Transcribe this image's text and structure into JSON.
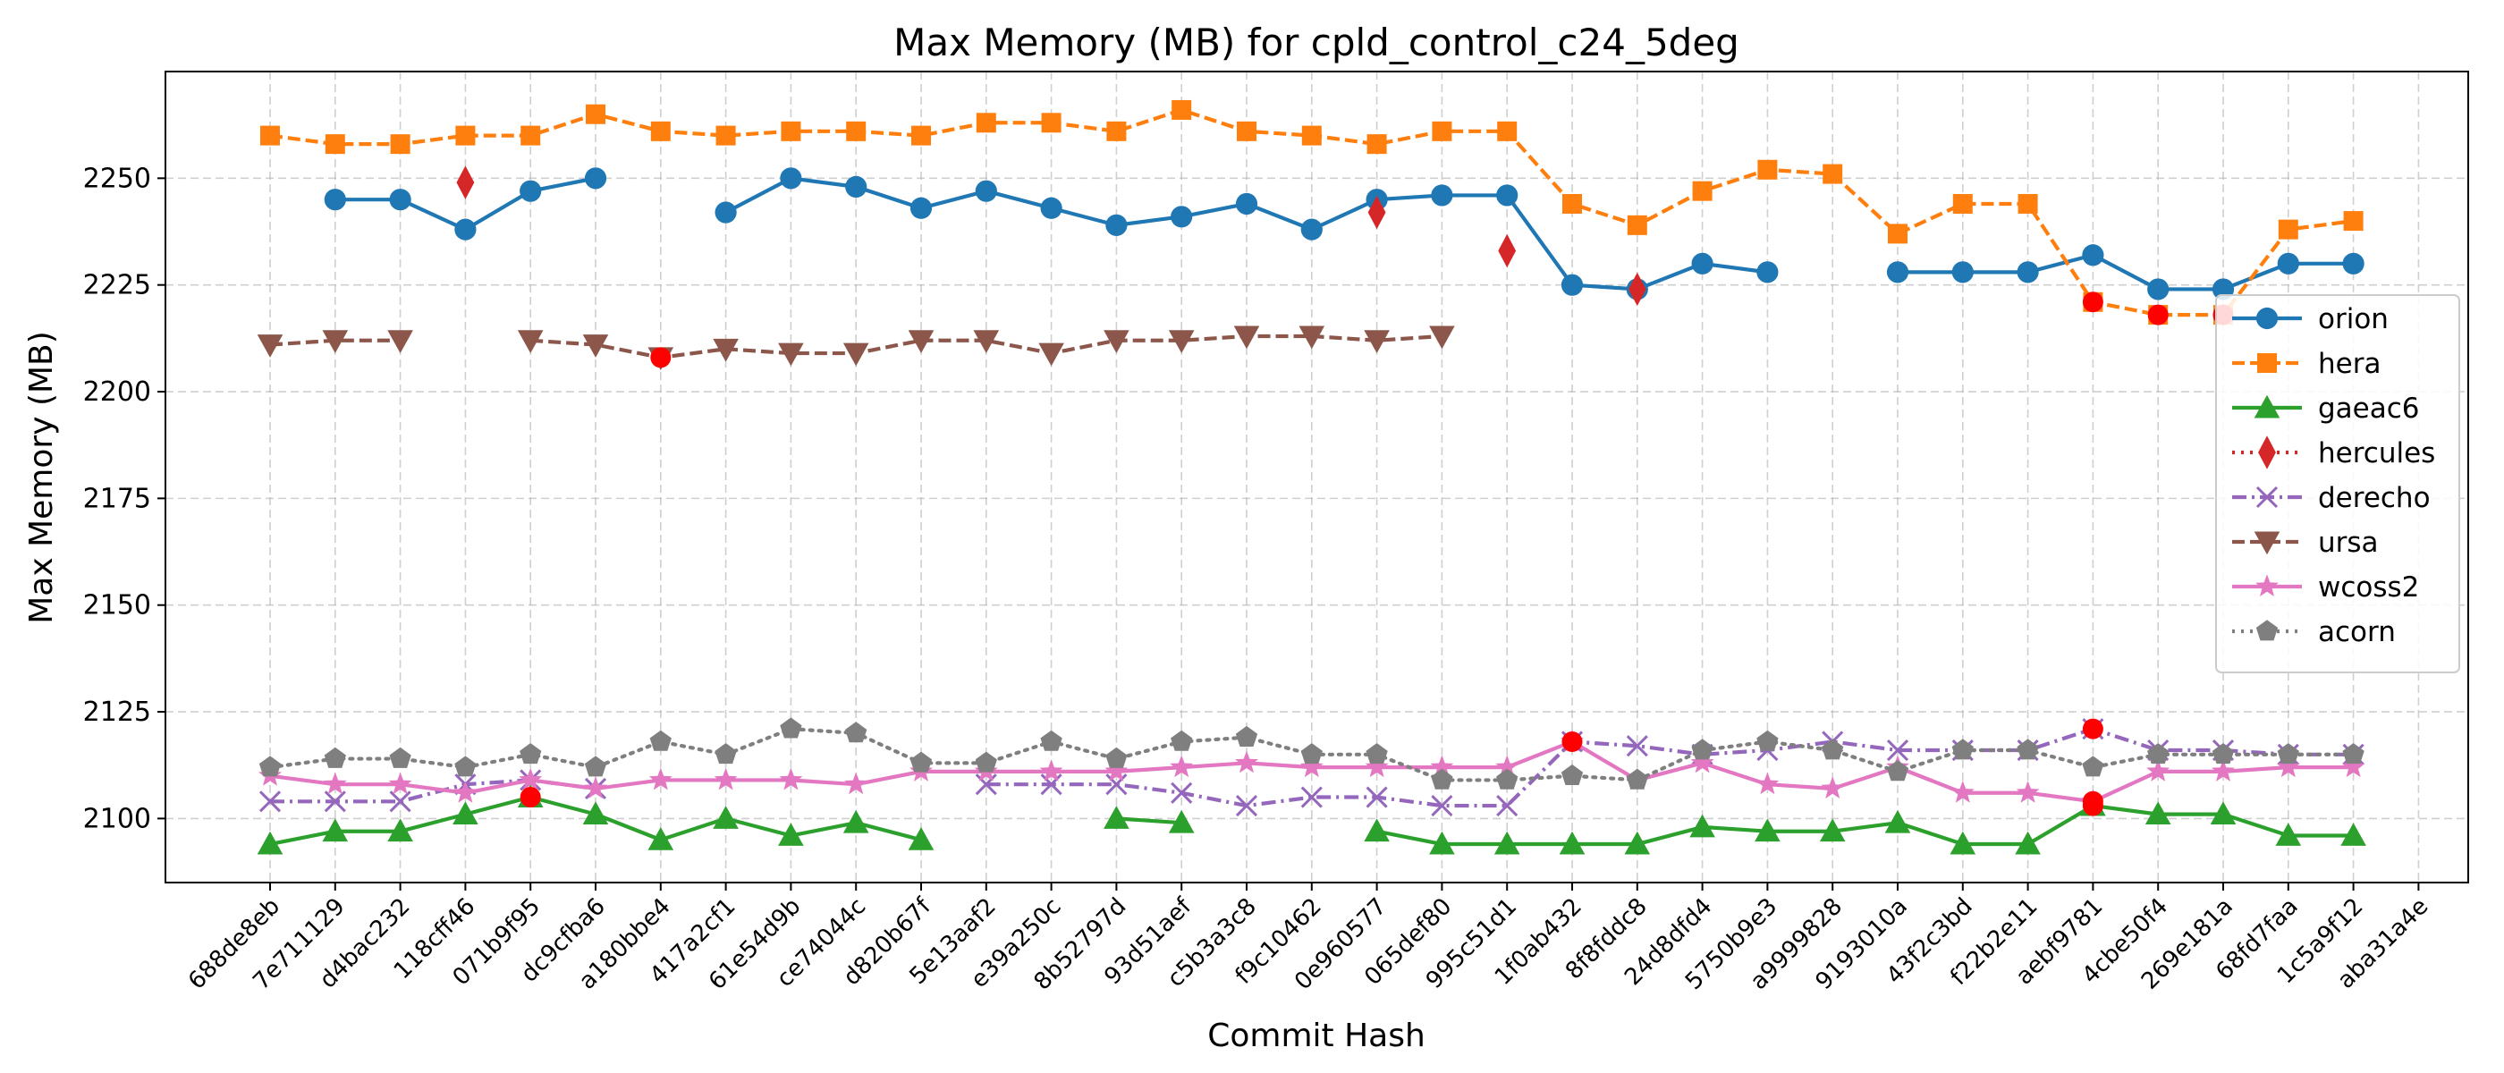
{
  "chart_data": {
    "type": "line",
    "title": "Max Memory (MB) for cpld_control_c24_5deg",
    "xlabel": "Commit Hash",
    "ylabel": "Max Memory (MB)",
    "ylim": [
      2085,
      2275
    ],
    "yticks": [
      2100,
      2125,
      2150,
      2175,
      2200,
      2225,
      2250
    ],
    "grid": true,
    "legend_position": "center-right",
    "categories": [
      "688de8eb",
      "7e711129",
      "d4bac232",
      "118cff46",
      "071b9f95",
      "dc9cfba6",
      "a180bbe4",
      "417a2cf1",
      "61e54d9b",
      "ce74044c",
      "d820b67f",
      "5e13aaf2",
      "e39a250c",
      "8b52797d",
      "93d51aef",
      "c5b3a3c8",
      "f9c10462",
      "0e960577",
      "065def80",
      "995c51d1",
      "1f0ab432",
      "8f8fddc8",
      "24d8dfd4",
      "5750b9e3",
      "a9999828",
      "9193010a",
      "43f2c3bd",
      "f22b2e11",
      "aebf9781",
      "4cbe50f4",
      "269e181a",
      "68fd7faa",
      "1c5a9f12",
      "aba31a4e"
    ],
    "series": [
      {
        "name": "orion",
        "color": "#1f77b4",
        "marker": "circle",
        "dash": "solid",
        "values": [
          null,
          2245,
          2245,
          2238,
          2247,
          2250,
          null,
          2242,
          2250,
          2248,
          2243,
          2247,
          2243,
          2239,
          2241,
          2244,
          2238,
          2245,
          2246,
          2246,
          2225,
          2224,
          2230,
          2228,
          null,
          2228,
          2228,
          2228,
          2232,
          2224,
          2224,
          2230,
          2230,
          null
        ]
      },
      {
        "name": "hera",
        "color": "#ff7f0e",
        "marker": "square",
        "dash": "dashed",
        "values": [
          2260,
          2258,
          2258,
          2260,
          2260,
          2265,
          2261,
          2260,
          2261,
          2261,
          2260,
          2263,
          2263,
          2261,
          2266,
          2261,
          2260,
          2258,
          2261,
          2261,
          2244,
          2239,
          2247,
          2252,
          2251,
          2237,
          2244,
          2244,
          2221,
          2218,
          2218,
          2238,
          2240,
          null
        ]
      },
      {
        "name": "gaeac6",
        "color": "#2ca02c",
        "marker": "triangle-up",
        "dash": "solid",
        "values": [
          2094,
          2097,
          2097,
          2101,
          2105,
          2101,
          2095,
          2100,
          2096,
          2099,
          2095,
          null,
          null,
          2100,
          2099,
          null,
          null,
          2097,
          2094,
          2094,
          2094,
          2094,
          2098,
          2097,
          2097,
          2099,
          2094,
          2094,
          2103,
          2101,
          2101,
          2096,
          2096,
          null
        ]
      },
      {
        "name": "hercules",
        "color": "#d62728",
        "marker": "diamond",
        "dash": "dotted",
        "values": [
          null,
          null,
          null,
          2249,
          null,
          null,
          null,
          null,
          null,
          null,
          null,
          null,
          null,
          null,
          null,
          null,
          null,
          2242,
          null,
          2233,
          null,
          2224,
          null,
          null,
          null,
          null,
          null,
          null,
          null,
          null,
          null,
          null,
          null,
          null
        ]
      },
      {
        "name": "derecho",
        "color": "#9467bd",
        "marker": "x",
        "dash": "dashdot",
        "values": [
          2104,
          2104,
          2104,
          2108,
          2109,
          2107,
          null,
          null,
          null,
          null,
          null,
          2108,
          2108,
          2108,
          2106,
          2103,
          2105,
          2105,
          2103,
          2103,
          2118,
          2117,
          2115,
          2116,
          2118,
          2116,
          2116,
          2116,
          2121,
          2116,
          2116,
          2115,
          2115,
          null
        ]
      },
      {
        "name": "ursa",
        "color": "#8c564b",
        "marker": "triangle-down",
        "dash": "dashed",
        "values": [
          2211,
          2212,
          2212,
          null,
          2212,
          2211,
          2208,
          2210,
          2209,
          2209,
          2212,
          2212,
          2209,
          2212,
          2212,
          2213,
          2213,
          2212,
          2213,
          null,
          null,
          null,
          null,
          null,
          null,
          null,
          null,
          null,
          null,
          null,
          null,
          null,
          null,
          null
        ]
      },
      {
        "name": "wcoss2",
        "color": "#e377c2",
        "marker": "star",
        "dash": "solid",
        "values": [
          2110,
          2108,
          2108,
          2106,
          2109,
          2107,
          2109,
          2109,
          2109,
          2108,
          2111,
          2111,
          2111,
          2111,
          2112,
          2113,
          2112,
          2112,
          2112,
          2112,
          2118,
          2109,
          2113,
          2108,
          2107,
          2112,
          2106,
          2106,
          2104,
          2111,
          2111,
          2112,
          2112,
          null
        ]
      },
      {
        "name": "acorn",
        "color": "#7f7f7f",
        "marker": "pentagon",
        "dash": "dotted",
        "values": [
          2112,
          2114,
          2114,
          2112,
          2115,
          2112,
          2118,
          2115,
          2121,
          2120,
          2113,
          2113,
          2118,
          2114,
          2118,
          2119,
          2115,
          2115,
          2109,
          2109,
          2110,
          2109,
          2116,
          2118,
          2116,
          2111,
          2116,
          2116,
          2112,
          2115,
          2115,
          2115,
          2115,
          null
        ]
      }
    ],
    "highlights": [
      {
        "series": "ursa",
        "category": "a180bbe4",
        "value": 2208
      },
      {
        "series": "gaeac6",
        "category": "071b9f95",
        "value": 2105
      },
      {
        "series": "wcoss2",
        "category": "1f0ab432",
        "value": 2118
      },
      {
        "series": "derecho",
        "category": "aebf9781",
        "value": 2121
      },
      {
        "series": "wcoss2",
        "category": "aebf9781",
        "value": 2104
      },
      {
        "series": "gaeac6",
        "category": "aebf9781",
        "value": 2103
      },
      {
        "series": "hera",
        "category": "aebf9781",
        "value": 2221
      },
      {
        "series": "hera",
        "category": "4cbe50f4",
        "value": 2218
      },
      {
        "series": "hera",
        "category": "269e181a",
        "value": 2218
      }
    ],
    "highlight_color": "#ff0000"
  }
}
